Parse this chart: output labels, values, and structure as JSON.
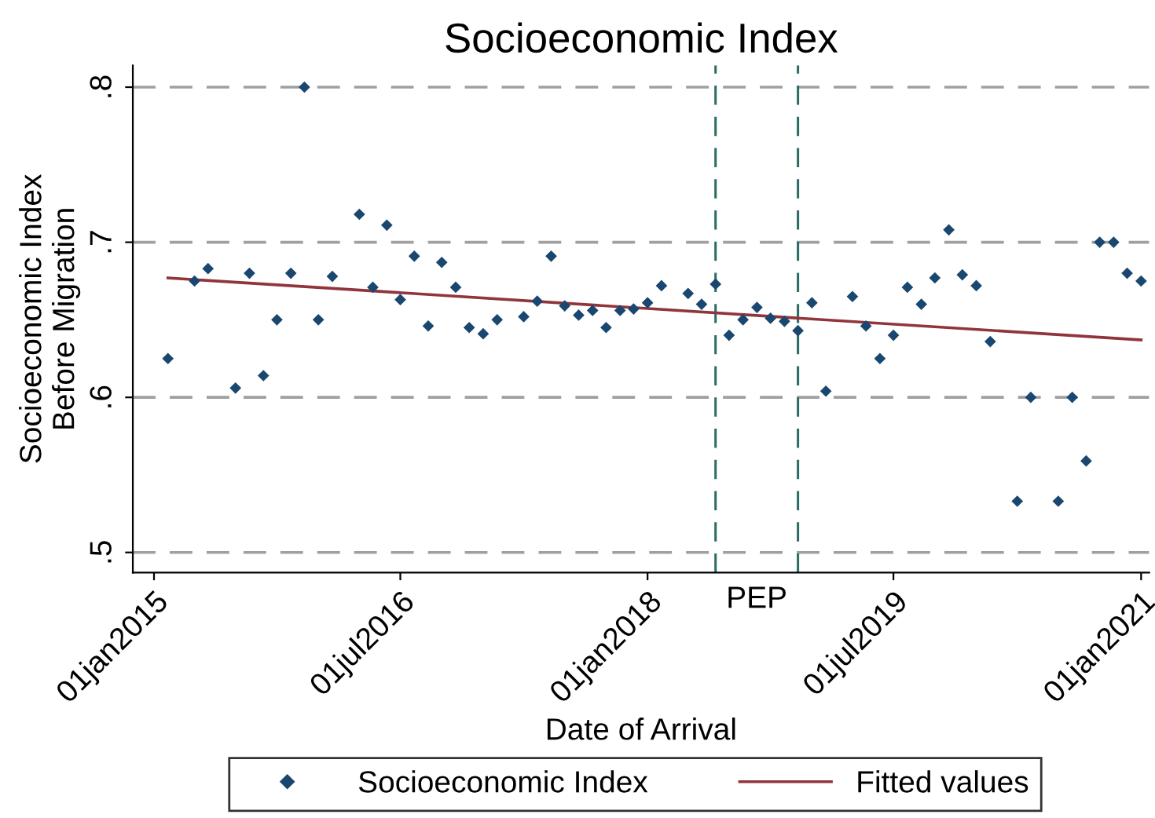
{
  "chart_data": {
    "type": "scatter",
    "title": "Socioeconomic Index",
    "xlabel": "Date of Arrival",
    "ylabel": "Socioeconomic Index\nBefore Migration",
    "x": [
      "2015-02",
      "2015-04",
      "2015-05",
      "2015-07",
      "2015-08",
      "2015-09",
      "2015-10",
      "2015-11",
      "2015-12",
      "2016-01",
      "2016-02",
      "2016-04",
      "2016-05",
      "2016-06",
      "2016-07",
      "2016-08",
      "2016-09",
      "2016-10",
      "2016-11",
      "2016-12",
      "2017-01",
      "2017-02",
      "2017-04",
      "2017-05",
      "2017-06",
      "2017-07",
      "2017-08",
      "2017-09",
      "2017-10",
      "2017-11",
      "2017-12",
      "2018-01",
      "2018-02",
      "2018-04",
      "2018-05",
      "2018-06",
      "2018-07",
      "2018-08",
      "2018-09",
      "2018-10",
      "2018-11",
      "2018-12",
      "2019-01",
      "2019-02",
      "2019-04",
      "2019-05",
      "2019-06",
      "2019-07",
      "2019-08",
      "2019-09",
      "2019-10",
      "2019-11",
      "2019-12",
      "2020-01",
      "2020-02",
      "2020-04",
      "2020-05",
      "2020-07",
      "2020-08",
      "2020-09",
      "2020-10",
      "2020-11",
      "2020-12",
      "2021-01"
    ],
    "series": [
      {
        "name": "Socioeconomic Index",
        "color": "#1a476f",
        "marker": "diamond",
        "values": [
          0.625,
          0.675,
          0.683,
          0.606,
          0.68,
          0.614,
          0.65,
          0.68,
          0.8,
          0.65,
          0.678,
          0.718,
          0.671,
          0.711,
          0.663,
          0.691,
          0.646,
          0.687,
          0.671,
          0.645,
          0.641,
          0.65,
          0.652,
          0.662,
          0.691,
          0.659,
          0.653,
          0.656,
          0.645,
          0.656,
          0.657,
          0.661,
          0.672,
          0.667,
          0.66,
          0.673,
          0.64,
          0.65,
          0.658,
          0.651,
          0.649,
          0.643,
          0.661,
          0.604,
          0.665,
          0.646,
          0.625,
          0.64,
          0.671,
          0.66,
          0.677,
          0.708,
          0.679,
          0.672,
          0.636,
          0.533,
          0.6,
          0.533,
          0.6,
          0.559,
          0.7,
          0.7,
          0.68,
          0.675
        ]
      },
      {
        "name": "Fitted values",
        "type": "line",
        "color": "#90353b",
        "x": [
          "2015-02",
          "2021-01"
        ],
        "values": [
          0.677,
          0.637
        ]
      }
    ],
    "xlim": [
      "2014-11-15",
      "2021-01-19"
    ],
    "xticks": [
      {
        "value": "2015-01-01",
        "label": "01jan2015"
      },
      {
        "value": "2016-07-01",
        "label": "01jul2016"
      },
      {
        "value": "2018-01-01",
        "label": "01jan2018"
      },
      {
        "value": "2019-07-01",
        "label": "01jul2019"
      },
      {
        "value": "2021-01-01",
        "label": "01jan2021"
      }
    ],
    "ylim": [
      0.487,
      0.814
    ],
    "yticks": [
      {
        "value": 0.5,
        "label": ".5"
      },
      {
        "value": 0.6,
        "label": ".6"
      },
      {
        "value": 0.7,
        "label": ".7"
      },
      {
        "value": 0.8,
        "label": ".8"
      }
    ],
    "ref_lines": [
      {
        "axis": "x",
        "value": "2018-06-01",
        "color": "#2d6d66",
        "line_style": "dashed"
      },
      {
        "axis": "x",
        "value": "2018-12-01",
        "color": "#2d6d66",
        "line_style": "dashed"
      }
    ],
    "annotations": [
      "PEP"
    ],
    "grid": "y",
    "legend": "bottom"
  }
}
